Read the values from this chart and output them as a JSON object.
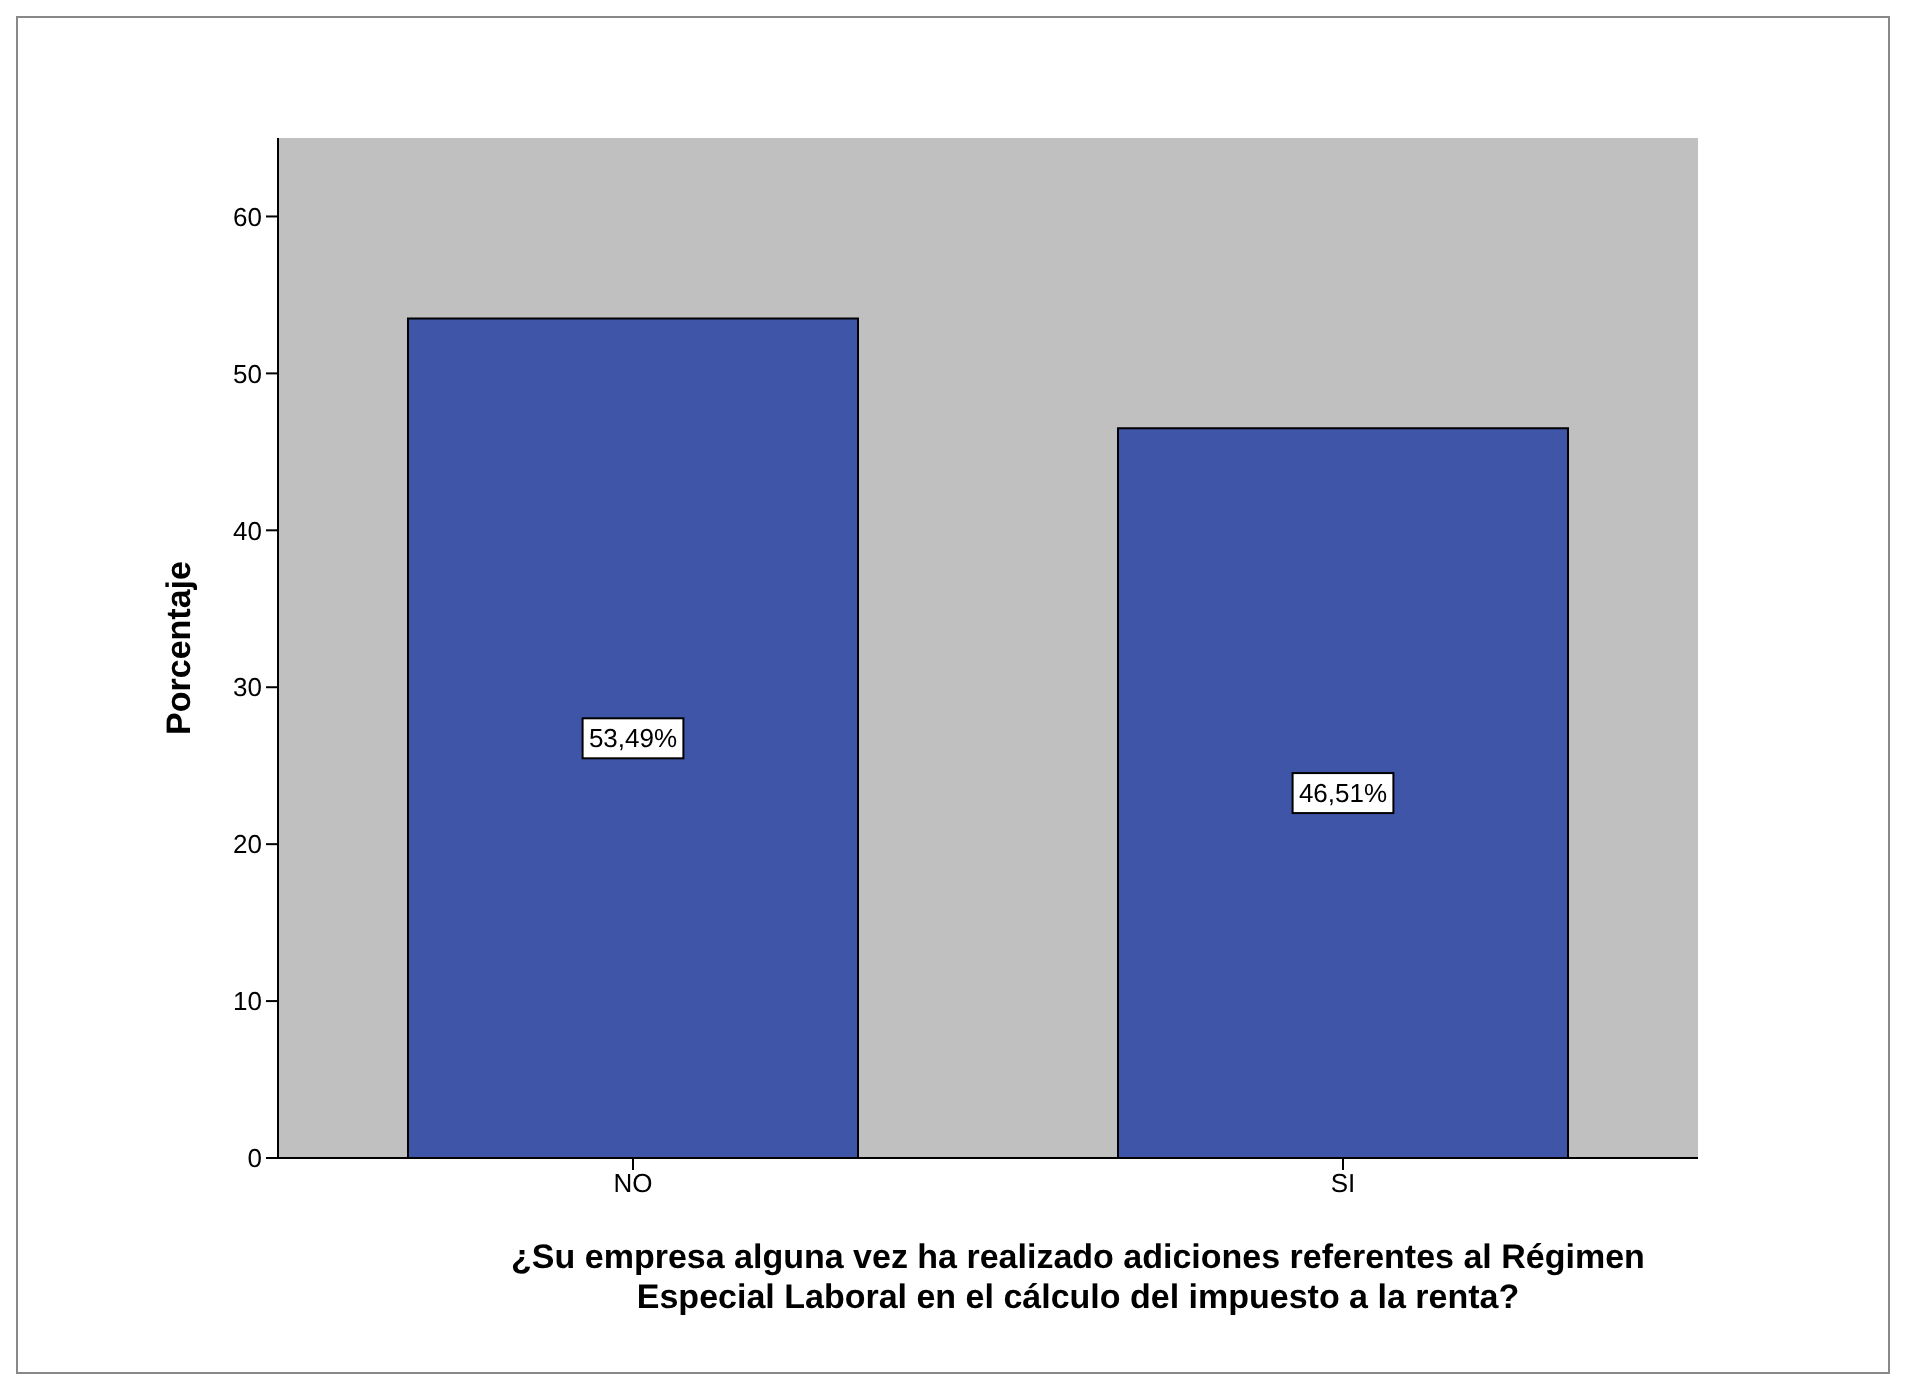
{
  "chart_data": {
    "type": "bar",
    "categories": [
      "NO",
      "SI"
    ],
    "values": [
      53.49,
      46.51
    ],
    "value_labels": [
      "53,49%",
      "46,51%"
    ],
    "color": "#3f56a8",
    "ylim": [
      0,
      65
    ],
    "yticks": [
      0,
      10,
      20,
      30,
      40,
      50,
      60
    ],
    "grid": false,
    "legend": false,
    "ylabel": "Porcentaje",
    "xlabel": "¿Su empresa alguna vez ha realizado adiciones referentes al Régimen Especial Laboral en el cálculo del impuesto a la renta?"
  }
}
